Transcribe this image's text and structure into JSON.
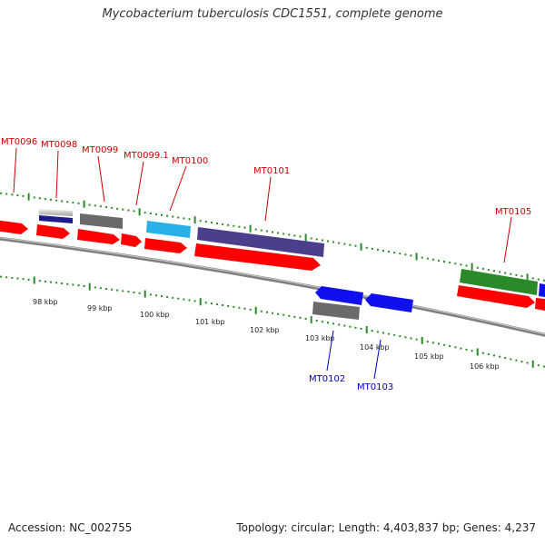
{
  "title": "Mycobacterium tuberculosis CDC1551, complete genome",
  "footer": {
    "accession": "Accession: NC_002755",
    "stats": "Topology: circular; Length: 4,403,837 bp; Genes: 4,237"
  },
  "colors": {
    "forward_label": "#cc0000",
    "reverse_label": "#0000bb",
    "tick": "#2a8a2a",
    "backbone": "#808080",
    "cds": "#ff0000",
    "rna": "#1c1c8c",
    "pseudo": "#6a6a6a",
    "gene_other": "#2ab0e8",
    "misc": "#4a3f8a",
    "green_gene": "#2a8a2a",
    "blue_gene": "#1010ee"
  },
  "scale_labels": [
    "98 kbp",
    "99 kbp",
    "100 kbp",
    "101 kbp",
    "102 kbp",
    "103 kbp",
    "104 kbp",
    "105 kbp",
    "106 kbp"
  ],
  "gene_labels_forward": [
    "MT0096",
    "MT0098",
    "MT0099",
    "MT0099.1",
    "MT0100",
    "MT0101",
    "MT0105"
  ],
  "gene_labels_reverse": [
    "MT0102",
    "MT0103"
  ]
}
